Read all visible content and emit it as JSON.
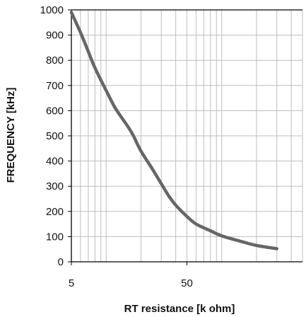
{
  "chart_data": {
    "type": "line",
    "title": "",
    "xlabel": "RT resistance  [k ohm]",
    "ylabel": "FREQUENCY [kHz]",
    "x_scale": "log",
    "xlim": [
      5,
      500
    ],
    "ylim": [
      0,
      1000
    ],
    "x_ticks": [
      "5",
      "50"
    ],
    "y_ticks": [
      "0",
      "100",
      "200",
      "300",
      "400",
      "500",
      "600",
      "700",
      "800",
      "900",
      "1000"
    ],
    "grid": true,
    "legend": "none",
    "series": [
      {
        "color": "#666666",
        "points": [
          {
            "x": 5,
            "y": 990
          },
          {
            "x": 6,
            "y": 910
          },
          {
            "x": 7,
            "y": 835
          },
          {
            "x": 8,
            "y": 770
          },
          {
            "x": 10,
            "y": 680
          },
          {
            "x": 12,
            "y": 610
          },
          {
            "x": 15,
            "y": 545
          },
          {
            "x": 17,
            "y": 505
          },
          {
            "x": 20,
            "y": 440
          },
          {
            "x": 25,
            "y": 370
          },
          {
            "x": 30,
            "y": 310
          },
          {
            "x": 35,
            "y": 260
          },
          {
            "x": 40,
            "y": 225
          },
          {
            "x": 50,
            "y": 180
          },
          {
            "x": 60,
            "y": 150
          },
          {
            "x": 80,
            "y": 123
          },
          {
            "x": 100,
            "y": 103
          },
          {
            "x": 150,
            "y": 80
          },
          {
            "x": 200,
            "y": 65
          },
          {
            "x": 300,
            "y": 52
          }
        ]
      }
    ]
  }
}
